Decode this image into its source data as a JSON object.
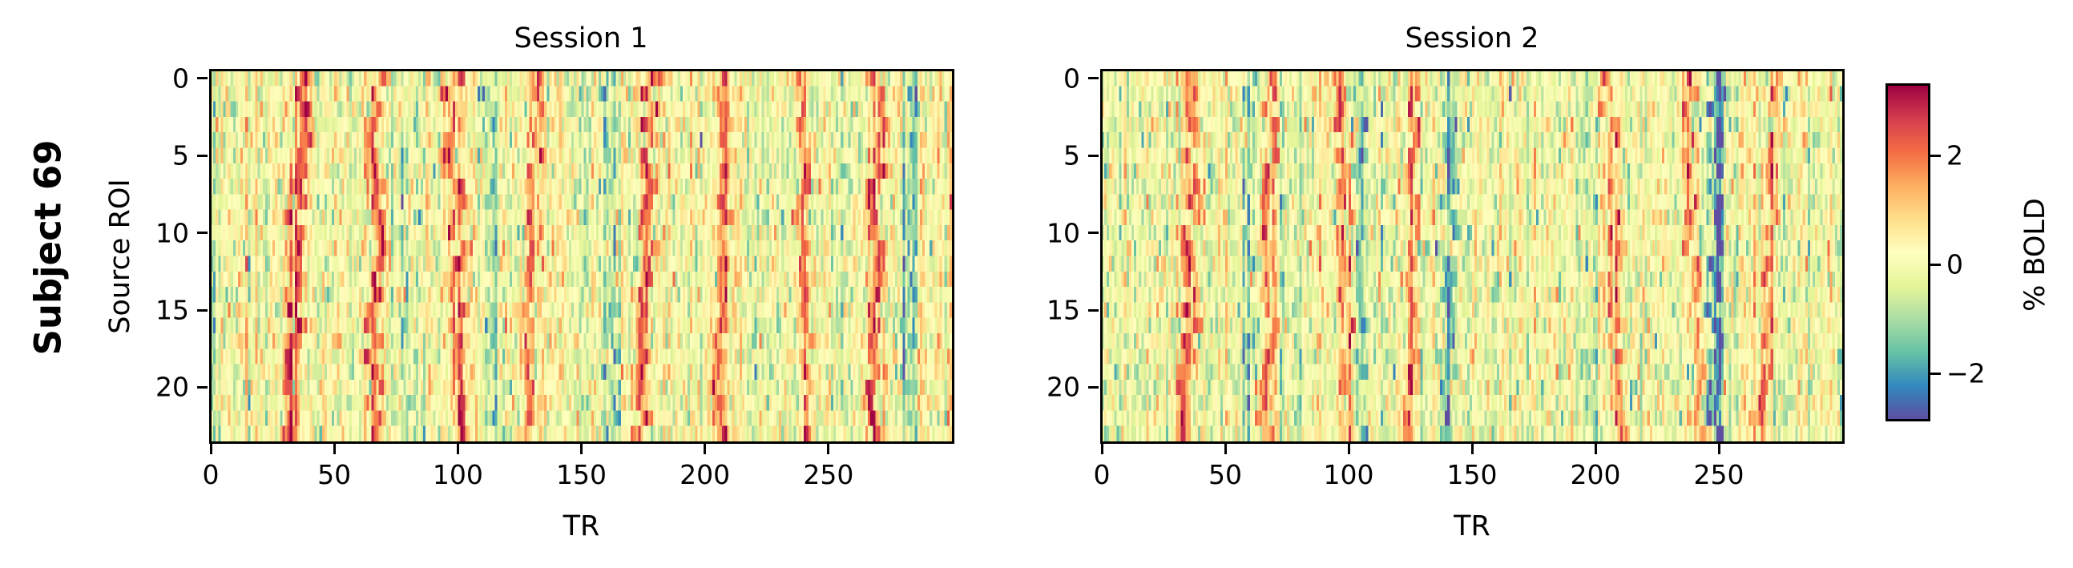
{
  "figure": {
    "row_label": "Subject 69",
    "colorbar_label": "% BOLD"
  },
  "chart_data": {
    "type": "heatmap",
    "title": "Subject 69",
    "colormap": "Spectral_r",
    "vmin": -2.85,
    "vmax": 3.3,
    "colorbar": {
      "label": "% BOLD",
      "ticks": [
        2,
        0,
        -2
      ],
      "tick_labels": [
        "2",
        "0",
        "−2"
      ],
      "colors_top_to_bottom": [
        "#9e0142",
        "#d53e4f",
        "#f46d43",
        "#fdae61",
        "#fee08b",
        "#ffffbf",
        "#e6f598",
        "#abdda4",
        "#66c2a5",
        "#3288bd",
        "#5e4fa2"
      ]
    },
    "panels": [
      {
        "title": "Session 1",
        "xlabel": "TR",
        "ylabel": "Source ROI",
        "n_rows": 24,
        "n_cols": 300,
        "xlim": [
          0,
          300
        ],
        "ylim": [
          23.5,
          -0.5
        ],
        "xticks": [
          0,
          50,
          100,
          150,
          200,
          250
        ],
        "yticks": [
          0,
          5,
          10,
          15,
          20
        ],
        "positive_bands_TR": [
          {
            "center_top": 38,
            "center_bottom": 31,
            "strength": 2.6
          },
          {
            "center_top": 67,
            "center_bottom": 65,
            "strength": 2.6
          },
          {
            "center_top": 97,
            "center_bottom": 100,
            "strength": 2.2
          },
          {
            "center_top": 131,
            "center_bottom": 128,
            "strength": 2.0
          },
          {
            "center_top": 178,
            "center_bottom": 174,
            "strength": 2.4
          },
          {
            "center_top": 207,
            "center_bottom": 205,
            "strength": 2.4
          },
          {
            "center_top": 238,
            "center_bottom": 240,
            "strength": 2.0
          },
          {
            "center_top": 271,
            "center_bottom": 268,
            "strength": 2.5
          }
        ],
        "negative_bands_TR": [
          {
            "center_top": 80,
            "center_bottom": 80,
            "strength": -1.2
          },
          {
            "center_top": 115,
            "center_bottom": 115,
            "strength": -1.4
          },
          {
            "center_top": 160,
            "center_bottom": 162,
            "strength": -1.3
          },
          {
            "center_top": 283,
            "center_bottom": 281,
            "strength": -1.4
          }
        ],
        "seed": 69
      },
      {
        "title": "Session 2",
        "xlabel": "TR",
        "ylabel": "",
        "n_rows": 24,
        "n_cols": 300,
        "xlim": [
          0,
          300
        ],
        "ylim": [
          23.5,
          -0.5
        ],
        "xticks": [
          0,
          50,
          100,
          150,
          200,
          250
        ],
        "yticks": [
          0,
          5,
          10,
          15,
          20
        ],
        "positive_bands_TR": [
          {
            "center_top": 38,
            "center_bottom": 32,
            "strength": 2.4
          },
          {
            "center_top": 68,
            "center_bottom": 66,
            "strength": 1.9
          },
          {
            "center_top": 97,
            "center_bottom": 100,
            "strength": 2.4
          },
          {
            "center_top": 127,
            "center_bottom": 124,
            "strength": 2.0
          },
          {
            "center_top": 205,
            "center_bottom": 208,
            "strength": 1.9
          },
          {
            "center_top": 237,
            "center_bottom": 242,
            "strength": 1.9
          },
          {
            "center_top": 272,
            "center_bottom": 268,
            "strength": 2.0
          }
        ],
        "negative_bands_TR": [
          {
            "center_top": 104,
            "center_bottom": 103,
            "strength": -2.2
          },
          {
            "center_top": 140,
            "center_bottom": 139,
            "strength": -2.0
          },
          {
            "center_top": 248,
            "center_bottom": 247,
            "strength": -2.3
          },
          {
            "center_top": 60,
            "center_bottom": 58,
            "strength": -1.2
          }
        ],
        "seed": 169
      }
    ]
  }
}
